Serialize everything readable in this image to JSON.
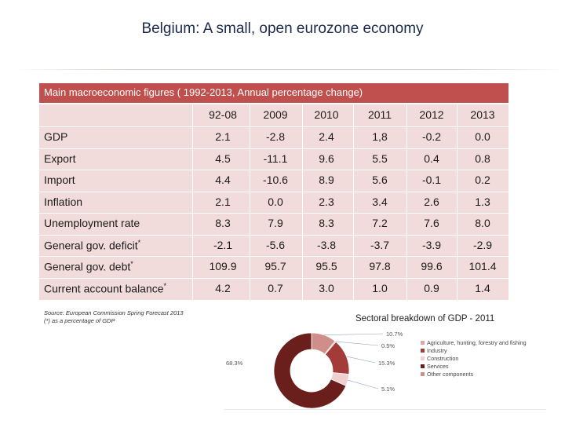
{
  "title": "Belgium: A small, open eurozone economy",
  "table": {
    "header": "Main macroeconomic figures ( 1992-2013, Annual percentage change)",
    "columns": [
      "92-08",
      "2009",
      "2010",
      "2011",
      "2012",
      "2013"
    ],
    "rows": [
      {
        "label": "GDP",
        "values": [
          "2.1",
          "-2.8",
          "2.4",
          "1,8",
          "-0.2",
          "0.0"
        ]
      },
      {
        "label": "Export",
        "values": [
          "4.5",
          "-11.1",
          "9.6",
          "5.5",
          "0.4",
          "0.8"
        ]
      },
      {
        "label": "Import",
        "values": [
          "4.4",
          "-10.6",
          "8.9",
          "5.6",
          "-0.1",
          "0.2"
        ]
      },
      {
        "label": "Inflation",
        "values": [
          "2.1",
          "0.0",
          "2.3",
          "3.4",
          "2.6",
          "1.3"
        ]
      },
      {
        "label": "Unemployment rate",
        "values": [
          "8.3",
          "7.9",
          "8.3",
          "7.2",
          "7.6",
          "8.0"
        ]
      },
      {
        "label": "General gov. deficit",
        "sup": "*",
        "values": [
          "-2.1",
          "-5.6",
          "-3.8",
          "-3.7",
          "-3.9",
          "-2.9"
        ]
      },
      {
        "label": "General gov. debt",
        "sup": "*",
        "values": [
          "109.9",
          "95.7",
          "95.5",
          "97.8",
          "99.6",
          "101.4"
        ]
      },
      {
        "label": "Current account balance",
        "sup": "*",
        "values": [
          "4.2",
          "0.7",
          "3.0",
          "1.0",
          "0.9",
          "1.4"
        ]
      }
    ]
  },
  "source": {
    "line1": "Source: European Commission Spring Forecast 2013",
    "line2": "(*) as a percentage of GDP"
  },
  "chart_data": {
    "type": "pie",
    "title": "Sectoral breakdown of GDP - 2011",
    "slices": [
      {
        "label": "Agriculture, hunting, forestry and fishing",
        "value": 0.5,
        "display": "0.5%",
        "color": "#d9a6a4"
      },
      {
        "label": "Industry",
        "value": 15.3,
        "display": "15.3%",
        "color": "#a33b38"
      },
      {
        "label": "Construction",
        "value": 5.1,
        "display": "5.1%",
        "color": "#f0d0cf"
      },
      {
        "label": "Services",
        "value": 68.3,
        "display": "68.3%",
        "color": "#6b1f1c"
      },
      {
        "label": "Other components",
        "value": 10.7,
        "display": "10.7%",
        "color": "#d08e8b"
      }
    ]
  }
}
